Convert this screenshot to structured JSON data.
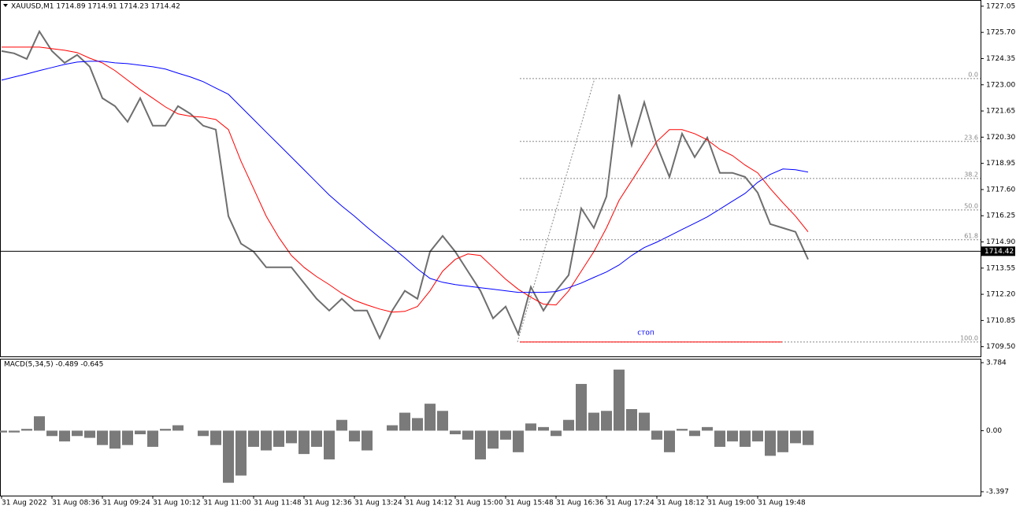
{
  "chart_data": [
    {
      "type": "line",
      "title": "XAUUSD,M1  1714.89 1714.91 1714.23 1714.42",
      "categories": [
        "31 Aug 2022",
        null,
        null,
        null,
        "31 Aug 08:36",
        null,
        null,
        null,
        "31 Aug 09:24",
        null,
        null,
        null,
        "31 Aug 10:12",
        null,
        null,
        null,
        "31 Aug 11:00",
        null,
        null,
        null,
        "31 Aug 11:48",
        null,
        null,
        null,
        "31 Aug 12:36",
        null,
        null,
        null,
        "31 Aug 13:24",
        null,
        null,
        null,
        "31 Aug 14:12",
        null,
        null,
        null,
        "31 Aug 15:00",
        null,
        null,
        null,
        "31 Aug 15:48",
        null,
        null,
        null,
        "31 Aug 16:36",
        null,
        null,
        null,
        "31 Aug 17:24",
        null,
        null,
        null,
        "31 Aug 18:12",
        null,
        null,
        null,
        "31 Aug 19:00",
        null,
        null,
        null,
        "31 Aug 19:48",
        null,
        null,
        null,
        null
      ],
      "series": [
        {
          "color": "#6e6e6e",
          "values": [
            1724.74,
            1724.62,
            1724.33,
            1725.75,
            1724.74,
            1724.13,
            1724.54,
            1723.93,
            1722.31,
            1721.9,
            1721.09,
            1722.31,
            1720.89,
            1720.89,
            1721.9,
            1721.5,
            1720.89,
            1720.69,
            1716.23,
            1714.81,
            1714.4,
            1713.59,
            1713.59,
            1713.59,
            1712.78,
            1711.97,
            1711.36,
            1711.97,
            1711.36,
            1711.36,
            1709.94,
            1711.36,
            1712.38,
            1711.97,
            1714.4,
            1715.21,
            1714.4,
            1713.39,
            1712.38,
            1710.96,
            1711.57,
            1710.15,
            1712.58,
            1711.36,
            1712.38,
            1713.19,
            1716.63,
            1715.62,
            1717.24,
            1722.5,
            1719.88,
            1722.1,
            1719.88,
            1718.25,
            1720.48,
            1719.27,
            1720.28,
            1718.46,
            1718.46,
            1718.25,
            1717.44,
            1715.82,
            1715.62,
            1715.42,
            1714.0
          ]
        },
        {
          "color": "#ff0000",
          "values": [
            1724.94,
            1724.94,
            1724.94,
            1724.94,
            1724.86,
            1724.78,
            1724.66,
            1724.37,
            1724.13,
            1723.73,
            1723.24,
            1722.75,
            1722.31,
            1721.86,
            1721.5,
            1721.38,
            1721.33,
            1721.21,
            1720.69,
            1719.06,
            1717.65,
            1716.23,
            1715.13,
            1714.2,
            1713.59,
            1713.11,
            1712.7,
            1712.25,
            1711.89,
            1711.65,
            1711.44,
            1711.28,
            1711.32,
            1711.57,
            1712.38,
            1713.39,
            1714.0,
            1714.28,
            1714.2,
            1713.59,
            1712.98,
            1712.46,
            1712.05,
            1711.69,
            1711.65,
            1712.38,
            1713.39,
            1714.4,
            1715.62,
            1717.04,
            1718.05,
            1719.06,
            1720.08,
            1720.69,
            1720.69,
            1720.48,
            1720.16,
            1719.67,
            1719.35,
            1718.86,
            1718.46,
            1717.65,
            1716.92,
            1716.23,
            1715.42
          ]
        },
        {
          "color": "#0000ff",
          "values": [
            1723.24,
            1723.4,
            1723.56,
            1723.73,
            1723.89,
            1724.05,
            1724.17,
            1724.21,
            1724.21,
            1724.13,
            1724.09,
            1724.01,
            1723.93,
            1723.81,
            1723.6,
            1723.4,
            1723.16,
            1722.83,
            1722.51,
            1721.86,
            1721.21,
            1720.56,
            1719.92,
            1719.27,
            1718.62,
            1717.97,
            1717.32,
            1716.75,
            1716.23,
            1715.66,
            1715.13,
            1714.61,
            1714.08,
            1713.51,
            1713.02,
            1712.82,
            1712.7,
            1712.62,
            1712.54,
            1712.46,
            1712.38,
            1712.3,
            1712.3,
            1712.3,
            1712.34,
            1712.54,
            1712.78,
            1713.07,
            1713.35,
            1713.71,
            1714.2,
            1714.61,
            1714.89,
            1715.21,
            1715.54,
            1715.86,
            1716.19,
            1716.59,
            1717.0,
            1717.4,
            1717.97,
            1718.38,
            1718.66,
            1718.62,
            1718.5
          ]
        }
      ],
      "ylim": [
        1709.0,
        1727.37
      ],
      "yticks": [
        1727.05,
        {
          "value": 1725.7,
          "label": "1725.70"
        },
        1724.35,
        {
          "value": 1723,
          "label": "1723.00"
        },
        1721.65,
        {
          "value": 1720.3,
          "label": "1720.30"
        },
        1718.95,
        {
          "value": 1717.6,
          "label": "1717.60"
        },
        1716.25,
        {
          "value": 1714.9,
          "label": "1714.90"
        },
        1713.55,
        {
          "value": 1712.2,
          "label": "1712.20"
        },
        1710.85,
        {
          "value": 1709.5,
          "label": "1709.50"
        }
      ],
      "last_price": 1714.42,
      "fib_levels": [
        {
          "value": 0,
          "label": "0.0",
          "price": 1723.32
        },
        {
          "value": 23.6,
          "label": "23.6",
          "price": 1720.08
        },
        {
          "value": 38.2,
          "label": "38.2",
          "price": 1718.17
        },
        {
          "value": 50,
          "label": "50.0",
          "price": 1716.55
        },
        {
          "value": 61.8,
          "label": "61.8",
          "price": 1715.01
        },
        {
          "value": 100,
          "label": "100.0",
          "price": 1709.74
        }
      ],
      "stop_line": {
        "label": "стоп",
        "price": 1709.74
      }
    },
    {
      "type": "bar",
      "title": "MACD(5,34,5) -0.489 -0.645",
      "color": "#7a7a7a",
      "values": [
        -0.1,
        -0.1,
        0.1,
        0.8,
        -0.3,
        -0.6,
        -0.3,
        -0.4,
        -0.8,
        -1.0,
        -0.8,
        -0.2,
        -0.9,
        0.1,
        0.3,
        0.0,
        -0.3,
        -0.8,
        -2.9,
        -2.5,
        -0.9,
        -1.1,
        -0.9,
        -0.7,
        -1.3,
        -0.9,
        -1.6,
        0.6,
        -0.6,
        -1.1,
        0.0,
        0.3,
        1.0,
        0.7,
        1.5,
        1.1,
        -0.2,
        -0.5,
        -1.6,
        -1.0,
        -0.5,
        -1.2,
        0.4,
        0.2,
        -0.3,
        0.6,
        2.6,
        1.0,
        1.1,
        3.4,
        1.2,
        1.0,
        -0.5,
        -1.2,
        0.1,
        -0.3,
        0.2,
        -0.9,
        -0.6,
        -0.9,
        -0.6,
        -1.4,
        -1.2,
        -0.7,
        -0.8
      ],
      "ylim": [
        -3.616,
        3.959
      ],
      "yticks": [
        3.784,
        {
          "value": 0,
          "label": "0.00"
        },
        -3.397
      ]
    }
  ]
}
